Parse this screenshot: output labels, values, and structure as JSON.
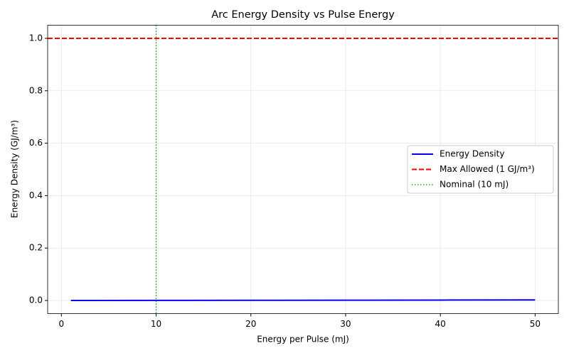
{
  "chart_data": {
    "type": "line",
    "title": "Arc Energy Density vs Pulse Energy",
    "xlabel": "Energy per Pulse (mJ)",
    "ylabel": "Energy Density (GJ/m³)",
    "x": [
      1,
      10,
      20,
      30,
      40,
      50
    ],
    "series": [
      {
        "name": "Energy Density",
        "color": "#0000ff",
        "values": [
          4e-05,
          0.0004,
          0.0008,
          0.0012,
          0.0016,
          0.002
        ]
      }
    ],
    "hline": {
      "name": "Max Allowed (1 GJ/m³)",
      "color": "#ff0000",
      "value": 1
    },
    "vline": {
      "name": "Nominal (10 mJ)",
      "color": "#2ca02c",
      "value": 10
    },
    "xlim": [
      -1.45,
      52.45
    ],
    "ylim": [
      -0.05,
      1.05
    ],
    "xticks": [
      0,
      10,
      20,
      30,
      40,
      50
    ],
    "yticks": [
      {
        "value": 0,
        "label": "0.0"
      },
      0.2,
      0.4,
      0.6,
      0.8,
      {
        "value": 1,
        "label": "1.0"
      }
    ],
    "grid": true,
    "legend": "center right"
  }
}
